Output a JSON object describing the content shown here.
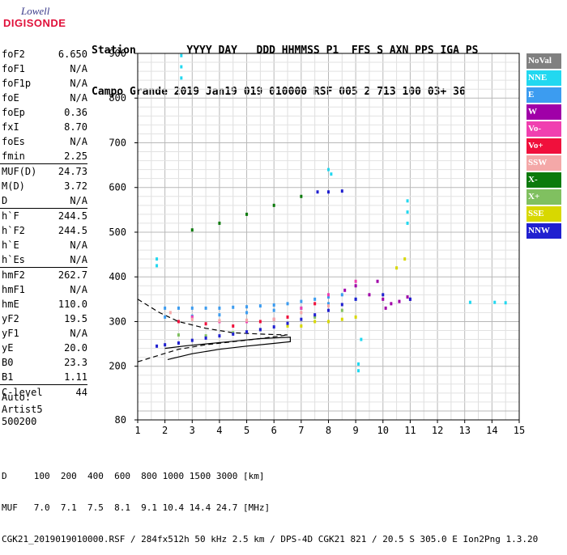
{
  "logo": {
    "line1": "Lowell",
    "line2": "DIGISONDE"
  },
  "header": {
    "row1": "Station        YYYY DAY   DDD HHMMSS P1  FFS S AXN PPS IGA PS",
    "row2": "Campo Grande 2019 Jan19 019 010000 RSF 005 2 713 100 03+ 36"
  },
  "params": [
    {
      "key": "foF2",
      "value": "6.650"
    },
    {
      "key": "foF1",
      "value": "N/A"
    },
    {
      "key": "foF1p",
      "value": "N/A"
    },
    {
      "key": "foE",
      "value": "N/A"
    },
    {
      "key": "foEp",
      "value": "0.36"
    },
    {
      "key": "fxI",
      "value": "8.70"
    },
    {
      "key": "foEs",
      "value": "N/A"
    },
    {
      "key": "fmin",
      "value": "2.25"
    },
    {
      "key": "MUF(D)",
      "value": "24.73"
    },
    {
      "key": "M(D)",
      "value": "3.72"
    },
    {
      "key": "D",
      "value": "N/A"
    },
    {
      "key": "h`F",
      "value": "244.5"
    },
    {
      "key": "h`F2",
      "value": "244.5"
    },
    {
      "key": "h`E",
      "value": "N/A"
    },
    {
      "key": "h`Es",
      "value": "N/A"
    },
    {
      "key": "hmF2",
      "value": "262.7"
    },
    {
      "key": "hmF1",
      "value": "N/A"
    },
    {
      "key": "hmE",
      "value": "110.0"
    },
    {
      "key": "yF2",
      "value": "19.5"
    },
    {
      "key": "yF1",
      "value": "N/A"
    },
    {
      "key": "yE",
      "value": "20.0"
    },
    {
      "key": "B0",
      "value": "23.3"
    },
    {
      "key": "B1",
      "value": "1.11"
    },
    {
      "key": "C-level",
      "value": "44"
    }
  ],
  "auto": {
    "line1": "Auto:",
    "line2": "Artist5",
    "line3": "500200"
  },
  "legend": [
    {
      "label": "NoVal",
      "color": "#808080"
    },
    {
      "label": "NNE",
      "color": "#22d8f0"
    },
    {
      "label": "E",
      "color": "#3c9cf0"
    },
    {
      "label": "W",
      "color": "#a000a8"
    },
    {
      "label": "Vo-",
      "color": "#f040b0"
    },
    {
      "label": "Vo+",
      "color": "#f0103c"
    },
    {
      "label": "SSW",
      "color": "#f4a8a8"
    },
    {
      "label": "X-",
      "color": "#0c7a0c"
    },
    {
      "label": "X+",
      "color": "#80c060"
    },
    {
      "label": "SSE",
      "color": "#d8d800"
    },
    {
      "label": "NNW",
      "color": "#2020d0"
    }
  ],
  "footer": {
    "line1": "D     100  200  400  600  800 1000 1500 3000 [km]",
    "line2": "MUF   7.0  7.1  7.5  8.1  9.1 10.4 14.4 24.7 [MHz]",
    "line3": "CGK21_2019019010000.RSF / 284fx512h 50 kHz 2.5 km / DPS-4D CGK21 821 / 20.5 S 305.0 E Ion2Png 1.3.20"
  },
  "chart_data": {
    "type": "scatter",
    "title": "",
    "xlabel": "",
    "ylabel": "",
    "xlim": [
      1,
      15
    ],
    "ylim": [
      80,
      900
    ],
    "xticks": [
      1,
      2,
      3,
      4,
      5,
      6,
      7,
      8,
      9,
      10,
      11,
      12,
      13,
      14,
      15
    ],
    "yticks": [
      80,
      200,
      300,
      400,
      500,
      600,
      700,
      800,
      900
    ],
    "grid": true,
    "series": [
      {
        "name": "NNE",
        "color": "#22d8f0",
        "points": [
          [
            1.7,
            440
          ],
          [
            1.7,
            425
          ],
          [
            2.6,
            895
          ],
          [
            2.6,
            870
          ],
          [
            2.6,
            845
          ],
          [
            9.1,
            205
          ],
          [
            9.1,
            190
          ],
          [
            9.2,
            260
          ],
          [
            10.9,
            570
          ],
          [
            10.9,
            545
          ],
          [
            10.9,
            520
          ],
          [
            8.0,
            640
          ],
          [
            8.1,
            630
          ],
          [
            13.2,
            343
          ],
          [
            14.1,
            343
          ],
          [
            14.5,
            342
          ]
        ]
      },
      {
        "name": "E",
        "color": "#3c9cf0",
        "points": [
          [
            2.0,
            330
          ],
          [
            2.5,
            330
          ],
          [
            3.0,
            330
          ],
          [
            3.5,
            330
          ],
          [
            4.0,
            330
          ],
          [
            4.5,
            332
          ],
          [
            5.0,
            333
          ],
          [
            5.5,
            335
          ],
          [
            6.0,
            337
          ],
          [
            6.5,
            340
          ],
          [
            7.0,
            345
          ],
          [
            7.5,
            350
          ],
          [
            8.0,
            355
          ],
          [
            8.5,
            360
          ],
          [
            2.0,
            310
          ],
          [
            3.0,
            312
          ],
          [
            4.0,
            315
          ],
          [
            5.0,
            320
          ],
          [
            6.0,
            325
          ],
          [
            7.0,
            330
          ],
          [
            8.0,
            340
          ],
          [
            9.0,
            350
          ]
        ]
      },
      {
        "name": "W",
        "color": "#a000a8",
        "points": [
          [
            9.0,
            380
          ],
          [
            9.5,
            360
          ],
          [
            10.0,
            350
          ],
          [
            10.3,
            340
          ],
          [
            10.6,
            345
          ],
          [
            10.9,
            355
          ],
          [
            11.0,
            350
          ],
          [
            8.6,
            370
          ],
          [
            9.8,
            390
          ],
          [
            10.1,
            330
          ]
        ]
      },
      {
        "name": "Vo-",
        "color": "#f040b0",
        "points": [
          [
            3.0,
            310
          ],
          [
            4.0,
            300
          ],
          [
            5.0,
            300
          ],
          [
            6.0,
            305
          ],
          [
            7.0,
            330
          ],
          [
            8.0,
            360
          ],
          [
            9.0,
            390
          ]
        ]
      },
      {
        "name": "Vo+",
        "color": "#f0103c",
        "points": [
          [
            2.5,
            300
          ],
          [
            3.5,
            295
          ],
          [
            4.5,
            290
          ],
          [
            5.5,
            300
          ],
          [
            6.5,
            310
          ],
          [
            7.5,
            340
          ]
        ]
      },
      {
        "name": "SSW",
        "color": "#f4a8a8",
        "points": [
          [
            2.2,
            320
          ],
          [
            3.0,
            305
          ],
          [
            4.0,
            302
          ],
          [
            5.0,
            303
          ],
          [
            6.0,
            305
          ],
          [
            7.0,
            320
          ],
          [
            8.0,
            335
          ]
        ]
      },
      {
        "name": "X-",
        "color": "#0c7a0c",
        "points": [
          [
            3.0,
            505
          ],
          [
            4.0,
            520
          ],
          [
            5.0,
            540
          ],
          [
            6.0,
            560
          ],
          [
            7.0,
            580
          ]
        ]
      },
      {
        "name": "X+",
        "color": "#80c060",
        "points": [
          [
            2.5,
            270
          ],
          [
            3.5,
            268
          ],
          [
            4.5,
            275
          ],
          [
            5.5,
            282
          ],
          [
            6.5,
            295
          ],
          [
            7.5,
            310
          ],
          [
            8.5,
            325
          ]
        ]
      },
      {
        "name": "SSE",
        "color": "#d8d800",
        "points": [
          [
            6.5,
            290
          ],
          [
            7.0,
            290
          ],
          [
            7.5,
            300
          ],
          [
            8.0,
            300
          ],
          [
            8.5,
            305
          ],
          [
            9.0,
            310
          ],
          [
            10.5,
            420
          ],
          [
            10.8,
            440
          ]
        ]
      },
      {
        "name": "NNW",
        "color": "#2020d0",
        "points": [
          [
            1.7,
            245
          ],
          [
            2.0,
            248
          ],
          [
            2.5,
            252
          ],
          [
            3.0,
            258
          ],
          [
            3.5,
            263
          ],
          [
            4.0,
            268
          ],
          [
            4.5,
            272
          ],
          [
            5.0,
            277
          ],
          [
            5.5,
            282
          ],
          [
            6.0,
            288
          ],
          [
            6.5,
            296
          ],
          [
            7.0,
            305
          ],
          [
            7.5,
            315
          ],
          [
            8.0,
            325
          ],
          [
            8.5,
            338
          ],
          [
            9.0,
            350
          ],
          [
            10.0,
            360
          ],
          [
            11.0,
            350
          ],
          [
            7.6,
            590
          ],
          [
            8.0,
            590
          ],
          [
            8.5,
            592
          ]
        ]
      }
    ],
    "profile_lines": [
      {
        "name": "",
        "style": "dashed",
        "points": [
          [
            1,
            350
          ],
          [
            1.8,
            320
          ],
          [
            2.5,
            300
          ],
          [
            3.5,
            285
          ],
          [
            4.5,
            275
          ],
          [
            5.5,
            272
          ],
          [
            6.5,
            270
          ]
        ]
      },
      {
        "name": "",
        "style": "dashed",
        "points": [
          [
            1,
            210
          ],
          [
            1.8,
            225
          ],
          [
            2.5,
            238
          ],
          [
            3.5,
            248
          ],
          [
            4.5,
            255
          ],
          [
            5.5,
            262
          ],
          [
            6.5,
            270
          ]
        ]
      },
      {
        "name": "",
        "style": "solid",
        "points": [
          [
            2.1,
            215
          ],
          [
            3.0,
            228
          ],
          [
            4.0,
            238
          ],
          [
            5.0,
            245
          ],
          [
            5.8,
            250
          ],
          [
            6.6,
            255
          ],
          [
            6.6,
            265
          ],
          [
            5.5,
            262
          ],
          [
            4.5,
            256
          ],
          [
            3.5,
            250
          ],
          [
            2.8,
            246
          ],
          [
            2.0,
            240
          ]
        ]
      }
    ]
  }
}
